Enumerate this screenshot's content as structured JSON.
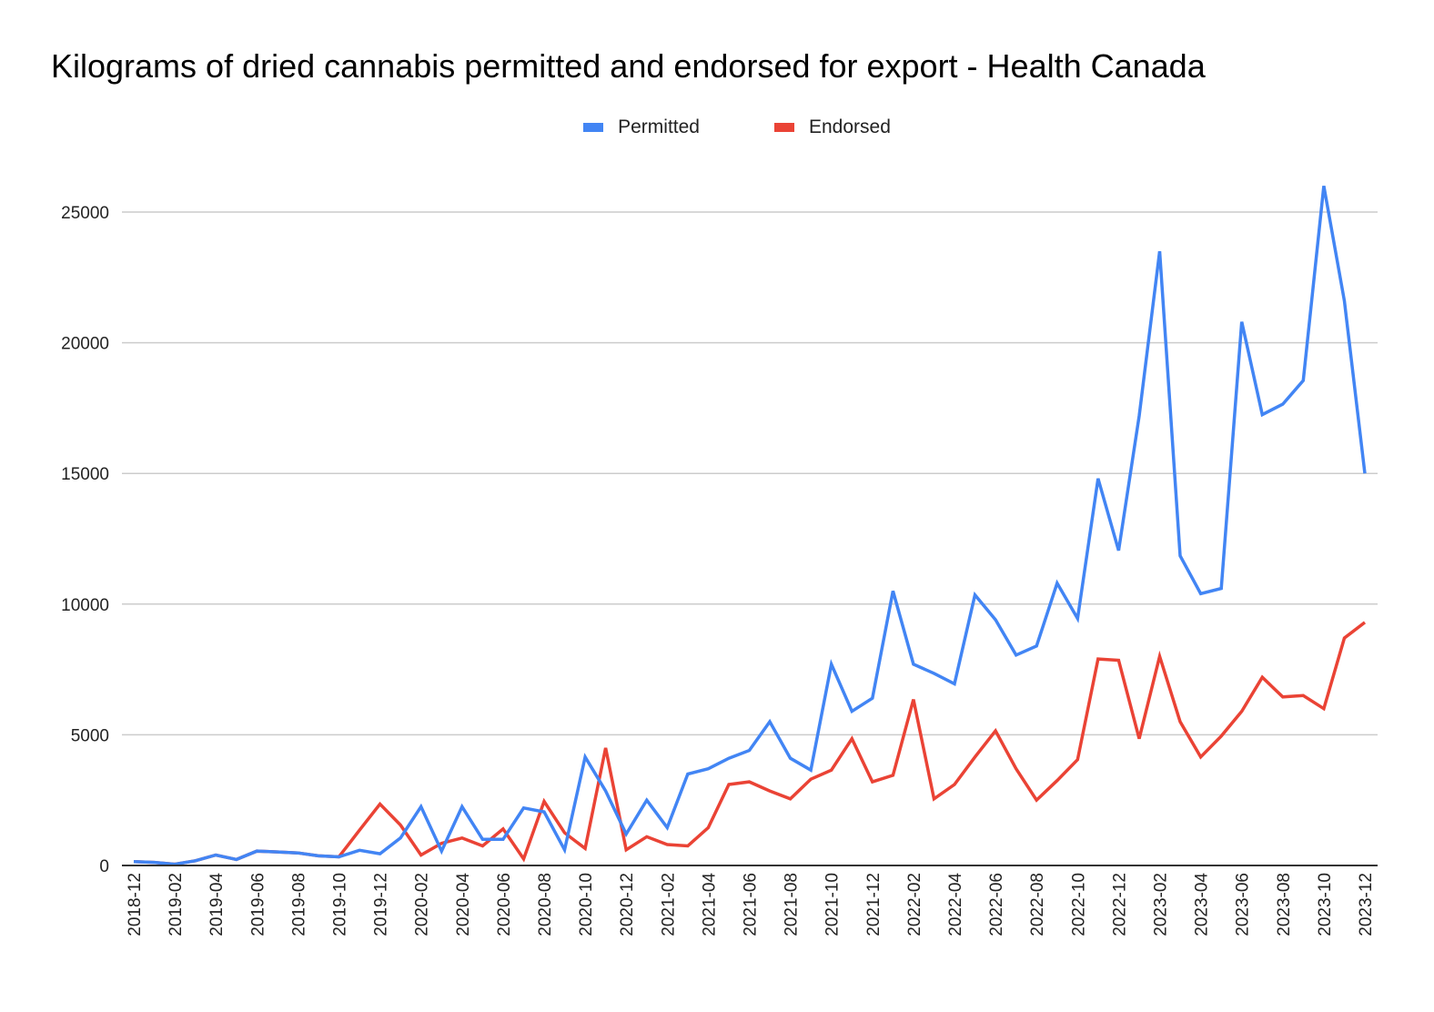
{
  "chart_data": {
    "type": "line",
    "title": "Kilograms of dried cannabis permitted and endorsed for export - Health Canada",
    "xlabel": "",
    "ylabel": "",
    "ylim": [
      0,
      26000
    ],
    "yticks": [
      "0",
      "5000",
      "10000",
      "15000",
      "20000",
      "25000"
    ],
    "ytick_values": [
      0,
      5000,
      10000,
      15000,
      20000,
      25000
    ],
    "grid": true,
    "legend": "top-center",
    "x": [
      "2018-12",
      "2019-01",
      "2019-02",
      "2019-03",
      "2019-04",
      "2019-05",
      "2019-06",
      "2019-07",
      "2019-08",
      "2019-09",
      "2019-10",
      "2019-11",
      "2019-12",
      "2020-01",
      "2020-02",
      "2020-03",
      "2020-04",
      "2020-05",
      "2020-06",
      "2020-07",
      "2020-08",
      "2020-09",
      "2020-10",
      "2020-11",
      "2020-12",
      "2021-01",
      "2021-02",
      "2021-03",
      "2021-04",
      "2021-05",
      "2021-06",
      "2021-07",
      "2021-08",
      "2021-09",
      "2021-10",
      "2021-11",
      "2021-12",
      "2022-01",
      "2022-02",
      "2022-03",
      "2022-04",
      "2022-05",
      "2022-06",
      "2022-07",
      "2022-08",
      "2022-09",
      "2022-10",
      "2022-11",
      "2022-12",
      "2023-01",
      "2023-02",
      "2023-03",
      "2023-04",
      "2023-05",
      "2023-06",
      "2023-07",
      "2023-08",
      "2023-09",
      "2023-10",
      "2023-11",
      "2023-12"
    ],
    "xtick_labels": [
      "2018-12",
      "2019-02",
      "2019-04",
      "2019-06",
      "2019-08",
      "2019-10",
      "2019-12",
      "2020-02",
      "2020-04",
      "2020-06",
      "2020-08",
      "2020-10",
      "2020-12",
      "2021-02",
      "2021-04",
      "2021-06",
      "2021-08",
      "2021-10",
      "2021-12",
      "2022-02",
      "2022-04",
      "2022-06",
      "2022-08",
      "2022-10",
      "2022-12",
      "2023-02",
      "2023-04",
      "2023-06",
      "2023-08",
      "2023-10",
      "2023-12"
    ],
    "series": [
      {
        "name": "Permitted",
        "color": "#4285f4",
        "values": [
          150,
          120,
          50,
          180,
          400,
          230,
          550,
          520,
          480,
          370,
          330,
          580,
          450,
          1050,
          2250,
          550,
          2250,
          1000,
          1000,
          2200,
          2050,
          600,
          4150,
          2850,
          1200,
          2500,
          1450,
          3500,
          3700,
          4100,
          4400,
          5500,
          4100,
          3650,
          7700,
          5900,
          6400,
          10500,
          7700,
          7350,
          6950,
          10350,
          9400,
          8050,
          8400,
          10800,
          9450,
          14800,
          12050,
          17200,
          23500,
          11850,
          10400,
          10600,
          20800,
          17250,
          17650,
          18550,
          26000,
          21600,
          15000
        ]
      },
      {
        "name": "Endorsed",
        "color": "#ea4335",
        "values": [
          150,
          120,
          50,
          180,
          400,
          230,
          550,
          520,
          480,
          370,
          330,
          1350,
          2350,
          1550,
          400,
          850,
          1050,
          750,
          1400,
          250,
          2450,
          1250,
          650,
          4500,
          600,
          1100,
          800,
          750,
          1450,
          3100,
          3200,
          2850,
          2550,
          3300,
          3650,
          4850,
          3200,
          3450,
          6350,
          2550,
          3100,
          4150,
          5150,
          3700,
          2500,
          3250,
          4050,
          7900,
          7850,
          4850,
          8000,
          5500,
          4150,
          4950,
          5900,
          7200,
          6450,
          6500,
          6000,
          8700,
          9300
        ]
      }
    ]
  }
}
